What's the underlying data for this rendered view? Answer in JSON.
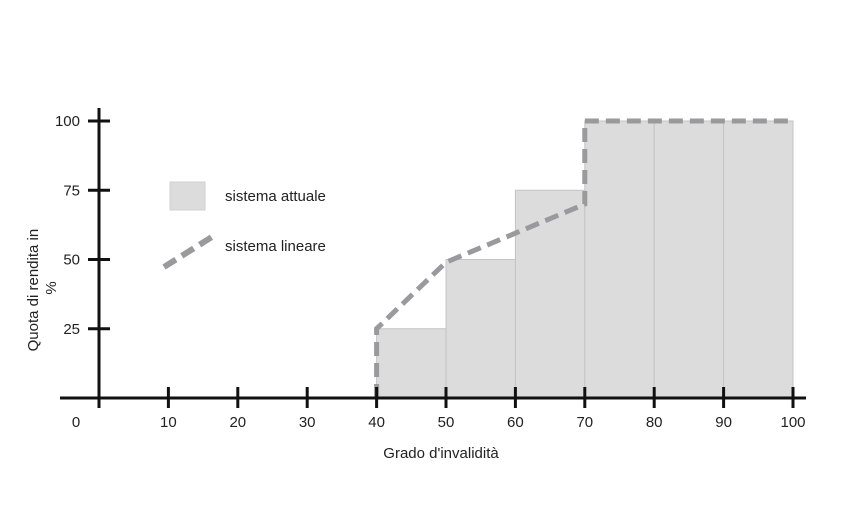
{
  "chart_data": {
    "type": "bar",
    "xlabel": "Grado d'invalidità",
    "ylabel": "Quota di rendita in %",
    "ylabel_line1": "Quota di rendita in",
    "ylabel_line2": "%",
    "xlim": [
      0,
      100
    ],
    "ylim": [
      0,
      100
    ],
    "x_ticks": [
      "0",
      "10",
      "20",
      "30",
      "40",
      "50",
      "60",
      "70",
      "80",
      "90",
      "100"
    ],
    "y_ticks": [
      "25",
      "50",
      "75",
      "100"
    ],
    "grid": false,
    "legend_position": "left",
    "series": [
      {
        "name": "sistema attuale",
        "kind": "step-bars",
        "color": "#dcdcdc",
        "bars": [
          {
            "x0": 40,
            "x1": 50,
            "value": 25
          },
          {
            "x0": 50,
            "x1": 60,
            "value": 50
          },
          {
            "x0": 60,
            "x1": 70,
            "value": 75
          },
          {
            "x0": 70,
            "x1": 80,
            "value": 100
          },
          {
            "x0": 80,
            "x1": 90,
            "value": 100
          },
          {
            "x0": 90,
            "x1": 100,
            "value": 100
          }
        ]
      },
      {
        "name": "sistema lineare",
        "kind": "dashed-line",
        "color": "#9a9a9c",
        "points": [
          [
            40,
            0
          ],
          [
            40,
            25
          ],
          [
            50,
            49
          ],
          [
            70,
            70
          ],
          [
            70,
            100
          ],
          [
            100,
            100
          ]
        ]
      }
    ]
  }
}
